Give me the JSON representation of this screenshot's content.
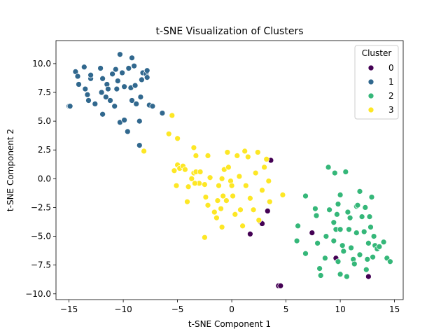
{
  "chart_data": {
    "type": "scatter",
    "title": "t-SNE Visualization of Clusters",
    "xlabel": "t-SNE Component 1",
    "ylabel": "t-SNE Component 2",
    "xlim": [
      -16.2,
      15.8
    ],
    "ylim": [
      -10.5,
      12.0
    ],
    "xticks": [
      -15,
      -10,
      -5,
      0,
      5,
      10,
      15
    ],
    "xtick_labels": [
      "−15",
      "−10",
      "−5",
      "0",
      "5",
      "10",
      "15"
    ],
    "yticks": [
      -10.0,
      -7.5,
      -5.0,
      -2.5,
      0.0,
      2.5,
      5.0,
      7.5,
      10.0
    ],
    "ytick_labels": [
      "−10.0",
      "−7.5",
      "−5.0",
      "−2.5",
      "0.0",
      "2.5",
      "5.0",
      "7.5",
      "10.0"
    ],
    "grid": false,
    "legend": {
      "title": "Cluster",
      "placement": "top-right",
      "entries": [
        "0",
        "1",
        "2",
        "3"
      ]
    },
    "series": [
      {
        "name": "0",
        "color": "#440154",
        "points": [
          [
            3.6,
            1.6
          ],
          [
            2.6,
            -3.7
          ],
          [
            2.8,
            -3.9
          ],
          [
            3.3,
            -2.8
          ],
          [
            1.7,
            -4.8
          ],
          [
            7.4,
            -4.7
          ],
          [
            9.6,
            -6.9
          ],
          [
            12.6,
            -8.5
          ],
          [
            4.3,
            -9.3
          ],
          [
            4.5,
            -9.3
          ]
        ]
      },
      {
        "name": "1",
        "color": "#31688e",
        "points": [
          [
            -15.0,
            6.3
          ],
          [
            -14.9,
            6.3
          ],
          [
            -14.4,
            9.3
          ],
          [
            -14.2,
            8.9
          ],
          [
            -14.1,
            8.2
          ],
          [
            -13.6,
            9.7
          ],
          [
            -13.5,
            7.8
          ],
          [
            -13.3,
            7.3
          ],
          [
            -13.2,
            6.8
          ],
          [
            -13.0,
            8.7
          ],
          [
            -13.0,
            9.0
          ],
          [
            -12.6,
            6.5
          ],
          [
            -12.1,
            9.6
          ],
          [
            -12.0,
            7.5
          ],
          [
            -11.9,
            5.6
          ],
          [
            -11.9,
            8.7
          ],
          [
            -11.6,
            7.1
          ],
          [
            -11.5,
            8.2
          ],
          [
            -11.4,
            7.8
          ],
          [
            -11.2,
            6.8
          ],
          [
            -11.0,
            9.1
          ],
          [
            -10.8,
            6.3
          ],
          [
            -10.7,
            9.5
          ],
          [
            -10.6,
            7.8
          ],
          [
            -10.5,
            8.5
          ],
          [
            -10.3,
            10.8
          ],
          [
            -10.3,
            4.9
          ],
          [
            -10.1,
            9.2
          ],
          [
            -9.9,
            5.1
          ],
          [
            -9.9,
            8.0
          ],
          [
            -9.6,
            4.1
          ],
          [
            -9.5,
            9.6
          ],
          [
            -9.3,
            7.9
          ],
          [
            -9.2,
            10.5
          ],
          [
            -9.2,
            6.8
          ],
          [
            -9.0,
            9.8
          ],
          [
            -8.9,
            8.1
          ],
          [
            -8.8,
            6.5
          ],
          [
            -8.5,
            5.0
          ],
          [
            -8.5,
            2.9
          ],
          [
            -8.4,
            7.1
          ],
          [
            -8.3,
            8.6
          ],
          [
            -8.2,
            9.2
          ],
          [
            -7.9,
            9.1
          ],
          [
            -7.8,
            8.8
          ],
          [
            -7.8,
            9.4
          ],
          [
            -7.6,
            6.4
          ],
          [
            -7.3,
            6.3
          ],
          [
            -6.4,
            5.7
          ]
        ]
      },
      {
        "name": "2",
        "color": "#35b779",
        "points": [
          [
            6.0,
            -5.4
          ],
          [
            6.1,
            -4.1
          ],
          [
            6.8,
            -1.5
          ],
          [
            6.8,
            -6.5
          ],
          [
            7.7,
            -2.6
          ],
          [
            7.8,
            -3.2
          ],
          [
            7.9,
            -5.6
          ],
          [
            8.1,
            -7.8
          ],
          [
            8.2,
            -8.4
          ],
          [
            8.6,
            -6.9
          ],
          [
            8.7,
            -5.0
          ],
          [
            8.9,
            1.0
          ],
          [
            9.0,
            -2.7
          ],
          [
            9.4,
            -5.4
          ],
          [
            9.4,
            -3.8
          ],
          [
            9.5,
            0.5
          ],
          [
            9.6,
            -4.4
          ],
          [
            9.7,
            -3.1
          ],
          [
            9.8,
            -2.2
          ],
          [
            9.8,
            -7.2
          ],
          [
            10.0,
            -4.4
          ],
          [
            10.0,
            -8.3
          ],
          [
            10.0,
            -1.4
          ],
          [
            10.2,
            -5.8
          ],
          [
            10.3,
            -6.3
          ],
          [
            10.5,
            0.6
          ],
          [
            10.6,
            -8.5
          ],
          [
            10.7,
            -2.9
          ],
          [
            10.8,
            -4.4
          ],
          [
            10.9,
            -3.4
          ],
          [
            11.0,
            -6.0
          ],
          [
            11.2,
            -7.0
          ],
          [
            11.3,
            -7.4
          ],
          [
            11.5,
            -4.7
          ],
          [
            11.5,
            -2.4
          ],
          [
            11.6,
            -2.3
          ],
          [
            11.8,
            -1.1
          ],
          [
            11.8,
            -6.6
          ],
          [
            12.0,
            -3.3
          ],
          [
            12.2,
            -4.6
          ],
          [
            12.3,
            -2.5
          ],
          [
            12.4,
            -7.9
          ],
          [
            12.5,
            -7.0
          ],
          [
            12.6,
            -5.6
          ],
          [
            12.7,
            -3.3
          ],
          [
            12.8,
            -4.2
          ],
          [
            13.0,
            -6.8
          ],
          [
            13.1,
            -5.0
          ],
          [
            13.2,
            -5.8
          ],
          [
            13.4,
            -6.1
          ],
          [
            13.6,
            -5.9
          ],
          [
            14.0,
            -5.5
          ],
          [
            14.3,
            -6.9
          ],
          [
            14.6,
            -7.2
          ],
          [
            12.9,
            -1.6
          ]
        ]
      },
      {
        "name": "3",
        "color": "#fde725",
        "points": [
          [
            -5.5,
            5.5
          ],
          [
            -5.0,
            3.5
          ],
          [
            -5.8,
            3.9
          ],
          [
            -8.1,
            2.4
          ],
          [
            -3.5,
            2.7
          ],
          [
            -3.3,
            2.0
          ],
          [
            -2.2,
            2.0
          ],
          [
            -5.3,
            0.7
          ],
          [
            -5.0,
            1.2
          ],
          [
            -4.8,
            0.9
          ],
          [
            -4.5,
            1.1
          ],
          [
            -4.3,
            0.8
          ],
          [
            -4.0,
            -0.7
          ],
          [
            -3.7,
            0.0
          ],
          [
            -3.5,
            0.5
          ],
          [
            -3.3,
            0.6
          ],
          [
            -3.0,
            -0.4
          ],
          [
            -2.9,
            0.6
          ],
          [
            -2.5,
            -0.5
          ],
          [
            -2.2,
            -2.3
          ],
          [
            -2.0,
            0.1
          ],
          [
            -1.6,
            -2.9
          ],
          [
            -1.4,
            -3.4
          ],
          [
            -1.3,
            -1.9
          ],
          [
            -1.2,
            -0.6
          ],
          [
            -1.0,
            -2.6
          ],
          [
            -0.9,
            0.0
          ],
          [
            -0.8,
            -1.5
          ],
          [
            -0.7,
            0.8
          ],
          [
            -0.5,
            -1.9
          ],
          [
            -0.4,
            2.3
          ],
          [
            -0.3,
            1.0
          ],
          [
            -0.1,
            -0.2
          ],
          [
            0.0,
            -0.6
          ],
          [
            0.1,
            -1.5
          ],
          [
            0.3,
            -3.1
          ],
          [
            0.5,
            2.0
          ],
          [
            0.7,
            0.2
          ],
          [
            0.8,
            -2.7
          ],
          [
            1.0,
            -4.1
          ],
          [
            1.2,
            2.4
          ],
          [
            1.3,
            -0.6
          ],
          [
            1.5,
            1.9
          ],
          [
            1.7,
            -1.7
          ],
          [
            2.0,
            -2.7
          ],
          [
            2.2,
            0.5
          ],
          [
            2.4,
            2.3
          ],
          [
            2.5,
            -3.6
          ],
          [
            2.8,
            -1.0
          ],
          [
            3.0,
            1.0
          ],
          [
            3.2,
            1.7
          ],
          [
            3.4,
            -0.2
          ],
          [
            3.5,
            -2.0
          ],
          [
            4.7,
            -1.4
          ],
          [
            -4.1,
            -2.0
          ],
          [
            -5.1,
            -0.6
          ],
          [
            -2.5,
            -5.1
          ],
          [
            -0.9,
            -4.2
          ],
          [
            -2.4,
            -1.6
          ],
          [
            -3.4,
            -0.4
          ]
        ]
      }
    ]
  }
}
